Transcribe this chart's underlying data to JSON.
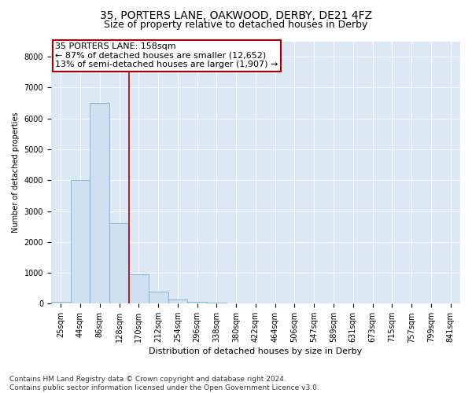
{
  "title1": "35, PORTERS LANE, OAKWOOD, DERBY, DE21 4FZ",
  "title2": "Size of property relative to detached houses in Derby",
  "xlabel": "Distribution of detached houses by size in Derby",
  "ylabel": "Number of detached properties",
  "categories": [
    "25sqm",
    "44sqm",
    "86sqm",
    "128sqm",
    "170sqm",
    "212sqm",
    "254sqm",
    "296sqm",
    "338sqm",
    "380sqm",
    "422sqm",
    "464sqm",
    "506sqm",
    "547sqm",
    "589sqm",
    "631sqm",
    "673sqm",
    "715sqm",
    "757sqm",
    "799sqm",
    "841sqm"
  ],
  "bar_values": [
    50,
    4000,
    6500,
    2600,
    950,
    380,
    130,
    60,
    30,
    20,
    0,
    0,
    0,
    0,
    0,
    0,
    0,
    0,
    0,
    0,
    0
  ],
  "bar_color": "#cddff0",
  "bar_edge_color": "#7aafd4",
  "vline_x": 3.5,
  "vline_color": "#aa0000",
  "annotation_box_color": "#ffffff",
  "annotation_box_edge": "#aa0000",
  "property_label": "35 PORTERS LANE: 158sqm",
  "annotation_line1": "← 87% of detached houses are smaller (12,652)",
  "annotation_line2": "13% of semi-detached houses are larger (1,907) →",
  "ylim": [
    0,
    8500
  ],
  "yticks": [
    0,
    1000,
    2000,
    3000,
    4000,
    5000,
    6000,
    7000,
    8000
  ],
  "footer_line1": "Contains HM Land Registry data © Crown copyright and database right 2024.",
  "footer_line2": "Contains public sector information licensed under the Open Government Licence v3.0.",
  "plot_bg_color": "#dce9f5",
  "fig_bg_color": "#ffffff",
  "grid_color": "#ffffff",
  "title1_fontsize": 10,
  "title2_fontsize": 9,
  "tick_fontsize": 7,
  "ylabel_fontsize": 7,
  "xlabel_fontsize": 8,
  "footer_fontsize": 6.5,
  "annotation_fontsize": 8
}
